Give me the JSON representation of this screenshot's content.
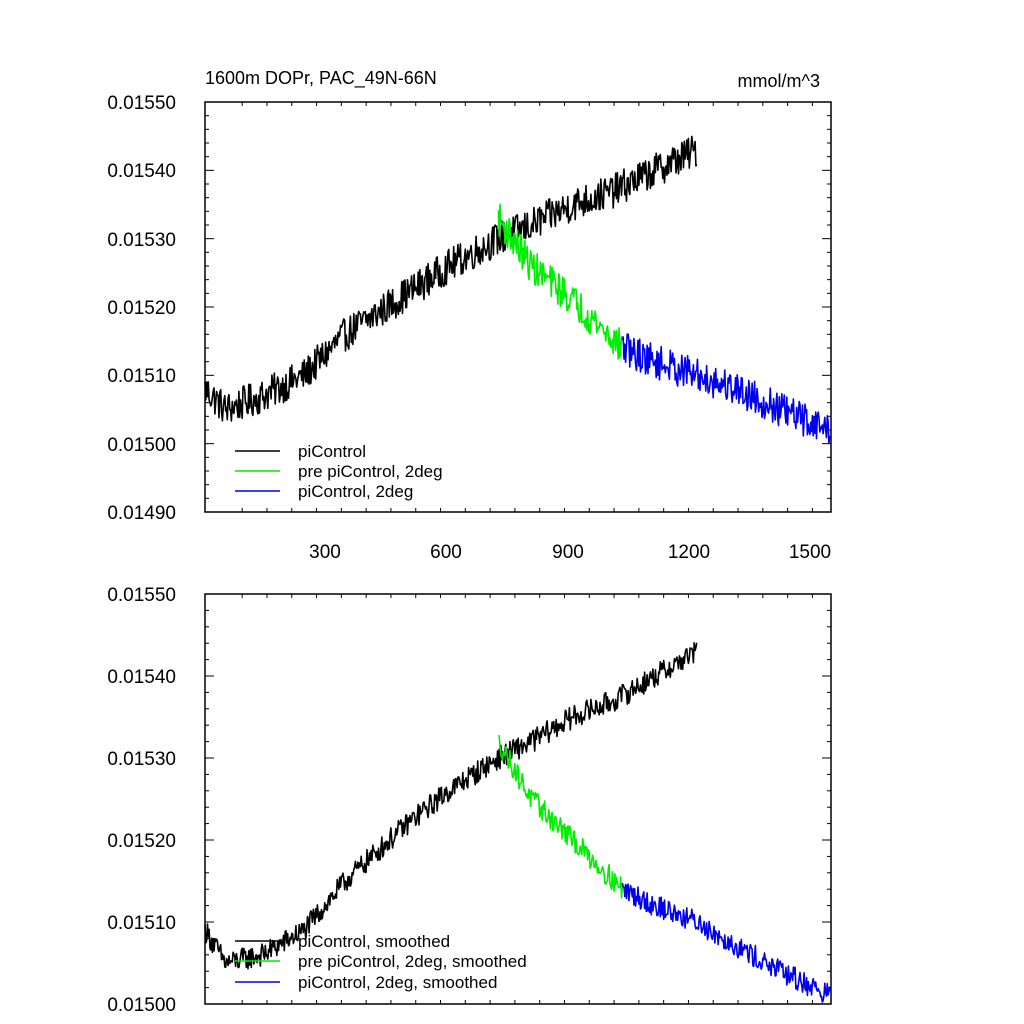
{
  "chart_data": [
    {
      "type": "line",
      "title": "1600m DOPr, PAC_49N-66N",
      "units": "mmol/m^3",
      "xlim": [
        10,
        1525
      ],
      "ylim": [
        0.0149,
        0.0155
      ],
      "xticks": [
        300,
        600,
        900,
        1200,
        1500
      ],
      "xtick_labels": [
        "300",
        "600",
        "900",
        "1200",
        "1500"
      ],
      "yticks": [
        0.0149,
        0.015,
        0.0151,
        0.0152,
        0.0153,
        0.0154,
        0.0155
      ],
      "ytick_labels": [
        "0.01490",
        "0.01500",
        "0.01510",
        "0.01520",
        "0.01530",
        "0.01540",
        "0.01550"
      ],
      "legend_position": "bottom-left",
      "noise": 2.5e-05,
      "series": [
        {
          "name": "piControl",
          "color": "#000000",
          "x_start": 10,
          "x_end": 1200,
          "anchors": [
            [
              10,
              0.01508
            ],
            [
              60,
              0.01505
            ],
            [
              150,
              0.01507
            ],
            [
              250,
              0.0151
            ],
            [
              350,
              0.01516
            ],
            [
              500,
              0.01522
            ],
            [
              600,
              0.01526
            ],
            [
              720,
              0.0153
            ],
            [
              800,
              0.01532
            ],
            [
              900,
              0.01535
            ],
            [
              1000,
              0.01537
            ],
            [
              1100,
              0.0154
            ],
            [
              1200,
              0.01543
            ]
          ]
        },
        {
          "name": "pre piControl, 2deg",
          "color": "#00ee00",
          "x_start": 720,
          "x_end": 1020,
          "anchors": [
            [
              720,
              0.01533
            ],
            [
              800,
              0.01526
            ],
            [
              900,
              0.01521
            ],
            [
              1020,
              0.01514
            ]
          ]
        },
        {
          "name": "piControl, 2deg",
          "color": "#0000ee",
          "x_start": 1020,
          "x_end": 1525,
          "anchors": [
            [
              1020,
              0.01514
            ],
            [
              1100,
              0.01512
            ],
            [
              1200,
              0.0151
            ],
            [
              1300,
              0.01508
            ],
            [
              1400,
              0.01505
            ],
            [
              1525,
              0.01502
            ]
          ]
        }
      ]
    },
    {
      "type": "line",
      "title": "",
      "xlim": [
        10,
        1525
      ],
      "ylim": [
        0.015,
        0.0155
      ],
      "yticks": [
        0.015,
        0.0151,
        0.0152,
        0.0153,
        0.0154,
        0.0155
      ],
      "ytick_labels": [
        "0.01500",
        "0.01510",
        "0.01520",
        "0.01530",
        "0.01540",
        "0.01550"
      ],
      "xticks": [
        300,
        600,
        900,
        1200,
        1500
      ],
      "legend_position": "bottom-left",
      "noise": 1.4e-05,
      "series": [
        {
          "name": "piControl, smoothed",
          "color": "#000000",
          "x_start": 10,
          "x_end": 1200,
          "anchors": [
            [
              10,
              0.01509
            ],
            [
              60,
              0.01505
            ],
            [
              150,
              0.01506
            ],
            [
              250,
              0.01509
            ],
            [
              350,
              0.01515
            ],
            [
              500,
              0.01522
            ],
            [
              600,
              0.01526
            ],
            [
              720,
              0.0153
            ],
            [
              800,
              0.01532
            ],
            [
              900,
              0.01535
            ],
            [
              1000,
              0.01537
            ],
            [
              1100,
              0.0154
            ],
            [
              1200,
              0.01543
            ]
          ]
        },
        {
          "name": "pre piControl, 2deg, smoothed",
          "color": "#00ee00",
          "x_start": 720,
          "x_end": 1020,
          "anchors": [
            [
              720,
              0.01532
            ],
            [
              800,
              0.01525
            ],
            [
              900,
              0.0152
            ],
            [
              1020,
              0.01514
            ]
          ]
        },
        {
          "name": "piControl, 2deg, smoothed",
          "color": "#0000ee",
          "x_start": 1020,
          "x_end": 1525,
          "anchors": [
            [
              1020,
              0.01514
            ],
            [
              1100,
              0.01512
            ],
            [
              1200,
              0.0151
            ],
            [
              1300,
              0.01507
            ],
            [
              1400,
              0.01504
            ],
            [
              1525,
              0.01501
            ]
          ]
        }
      ]
    }
  ]
}
